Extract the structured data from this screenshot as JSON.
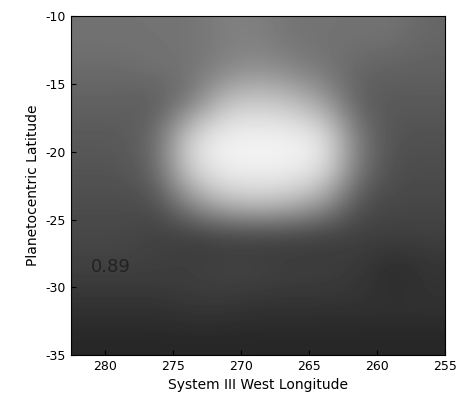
{
  "chart_data": {
    "type": "heatmap",
    "x_label": "System III West Longitude",
    "y_label": "Planetocentric Latitude",
    "xlim": [
      282.5,
      255
    ],
    "ylim": [
      -35,
      -10
    ],
    "xticks": [
      280,
      275,
      270,
      265,
      260,
      255
    ],
    "yticks": [
      -35,
      -30,
      -25,
      -20,
      -15,
      -10
    ],
    "color": "gray",
    "color_range": [
      0,
      1
    ],
    "cells": [
      [
        0.15,
        0.15,
        0.15,
        0.15,
        0.15,
        0.15,
        0.15,
        0.15,
        0.15,
        0.15,
        0.15
      ],
      [
        0.2,
        0.2,
        0.2,
        0.22,
        0.22,
        0.2,
        0.2,
        0.2,
        0.2,
        0.2,
        0.2
      ],
      [
        0.25,
        0.25,
        0.25,
        0.25,
        0.27,
        0.27,
        0.25,
        0.25,
        0.22,
        0.15,
        0.2
      ],
      [
        0.28,
        0.28,
        0.25,
        0.22,
        0.22,
        0.22,
        0.22,
        0.22,
        0.25,
        0.25,
        0.25
      ],
      [
        0.3,
        0.3,
        0.3,
        0.55,
        0.75,
        0.8,
        0.75,
        0.6,
        0.3,
        0.28,
        0.28
      ],
      [
        0.33,
        0.33,
        0.4,
        0.85,
        0.95,
        0.95,
        0.95,
        0.9,
        0.45,
        0.3,
        0.3
      ],
      [
        0.35,
        0.35,
        0.4,
        0.85,
        0.95,
        0.95,
        0.95,
        0.9,
        0.45,
        0.32,
        0.32
      ],
      [
        0.38,
        0.38,
        0.35,
        0.45,
        0.75,
        0.8,
        0.75,
        0.6,
        0.35,
        0.35,
        0.35
      ],
      [
        0.42,
        0.42,
        0.45,
        0.45,
        0.5,
        0.55,
        0.5,
        0.45,
        0.4,
        0.38,
        0.38
      ],
      [
        0.45,
        0.45,
        0.45,
        0.45,
        0.5,
        0.5,
        0.45,
        0.45,
        0.45,
        0.45,
        0.4
      ]
    ],
    "annotations": [
      {
        "text": "0.89",
        "x": 281,
        "y": -28.5
      }
    ]
  }
}
